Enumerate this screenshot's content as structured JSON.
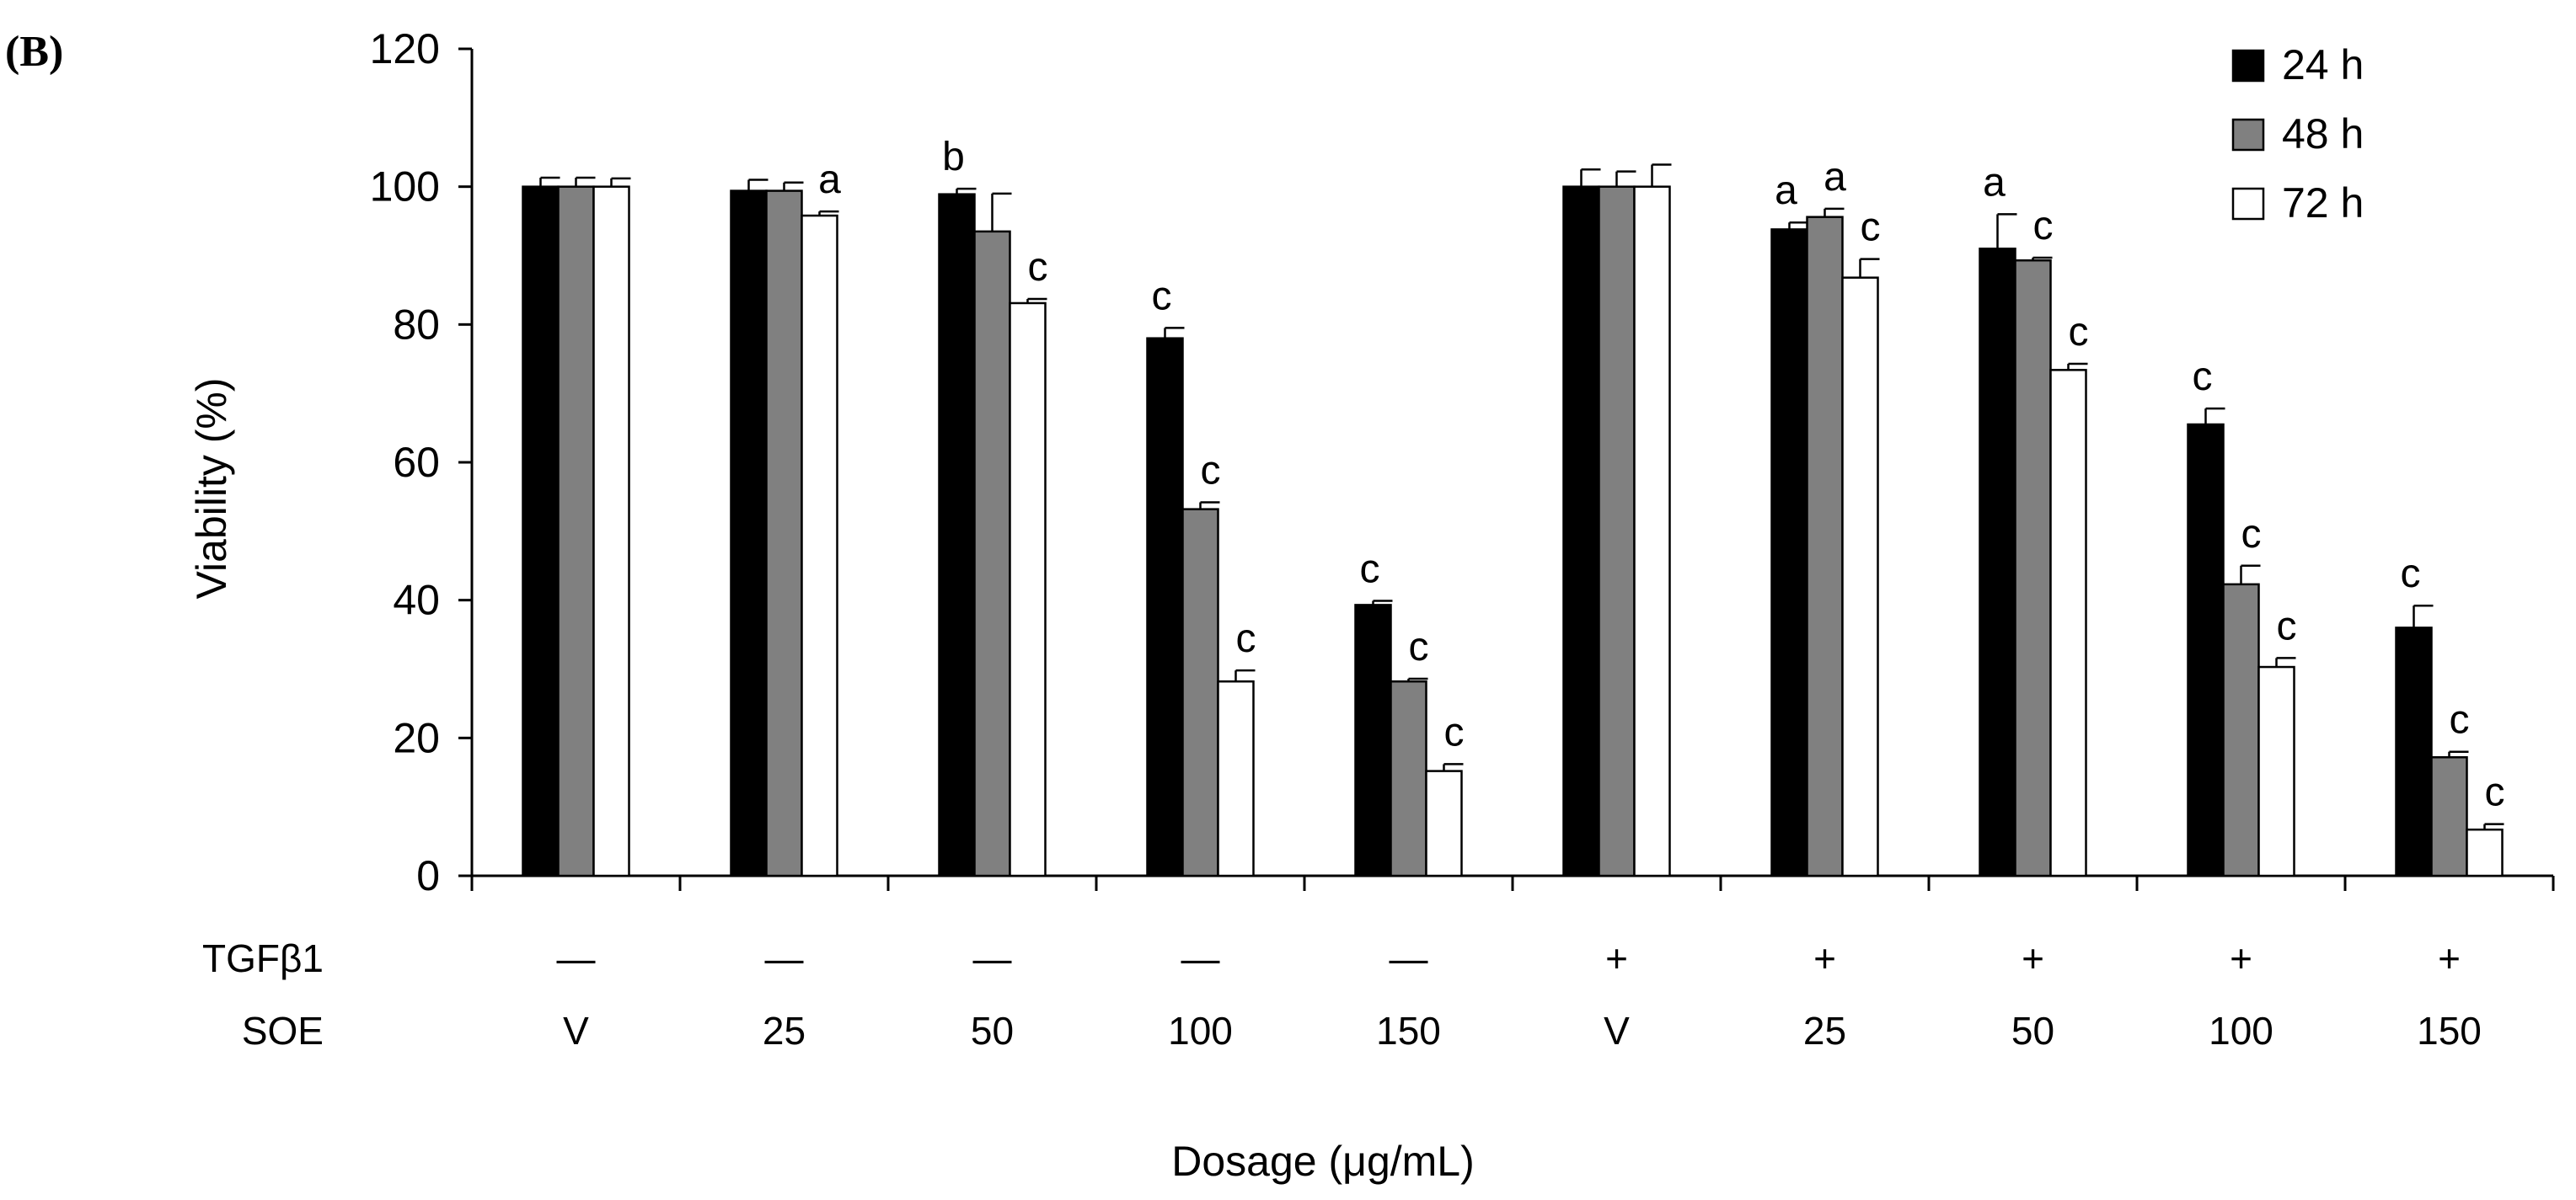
{
  "panel_label": "(B)",
  "colors": {
    "h24": "#000000",
    "h48": "#808080",
    "h72": "#ffffff",
    "stroke": "#000000"
  },
  "chart_data": {
    "type": "bar",
    "title": "",
    "xlabel": "Dosage (μg/mL)",
    "ylabel": "Viability (%)",
    "ylim": [
      0,
      120
    ],
    "yticks": [
      0,
      20,
      40,
      60,
      80,
      100,
      120
    ],
    "legend_position": "top-right",
    "row_labels": [
      "TGFβ1",
      "SOE"
    ],
    "tgf": [
      "—",
      "—",
      "—",
      "—",
      "—",
      "+",
      "+",
      "+",
      "+",
      "+"
    ],
    "categories": [
      "V",
      "25",
      "50",
      "100",
      "150",
      "V",
      "25",
      "50",
      "100",
      "150"
    ],
    "series": [
      {
        "name": "24 h",
        "values": [
          100,
          99.4,
          98.9,
          78,
          39.3,
          100,
          93.8,
          91,
          65.5,
          36
        ],
        "errors": [
          1.3,
          1.6,
          0.8,
          1.5,
          0.6,
          2.5,
          1,
          5,
          2.3,
          3.2
        ],
        "sig": [
          "",
          "",
          "b",
          "c",
          "c",
          "",
          "a",
          "a",
          "c",
          "c"
        ]
      },
      {
        "name": "48 h",
        "values": [
          100,
          99.4,
          93.5,
          53.2,
          28.2,
          100,
          95.6,
          89.3,
          42.3,
          17.2
        ],
        "errors": [
          1.3,
          1.2,
          5.5,
          1,
          0.4,
          2.2,
          1.2,
          0.4,
          2.7,
          0.8
        ],
        "sig": [
          "",
          "",
          "",
          "c",
          "c",
          "",
          "a",
          "c",
          "c",
          "c"
        ]
      },
      {
        "name": "72 h",
        "values": [
          100,
          95.8,
          83.1,
          28.2,
          15.2,
          100,
          86.8,
          73.4,
          30.3,
          6.7
        ],
        "errors": [
          1.2,
          0.6,
          0.6,
          1.6,
          1,
          3.2,
          2.7,
          0.9,
          1.3,
          0.8
        ],
        "sig": [
          "",
          "a",
          "c",
          "c",
          "c",
          "",
          "c",
          "c",
          "c",
          "c"
        ]
      }
    ]
  }
}
